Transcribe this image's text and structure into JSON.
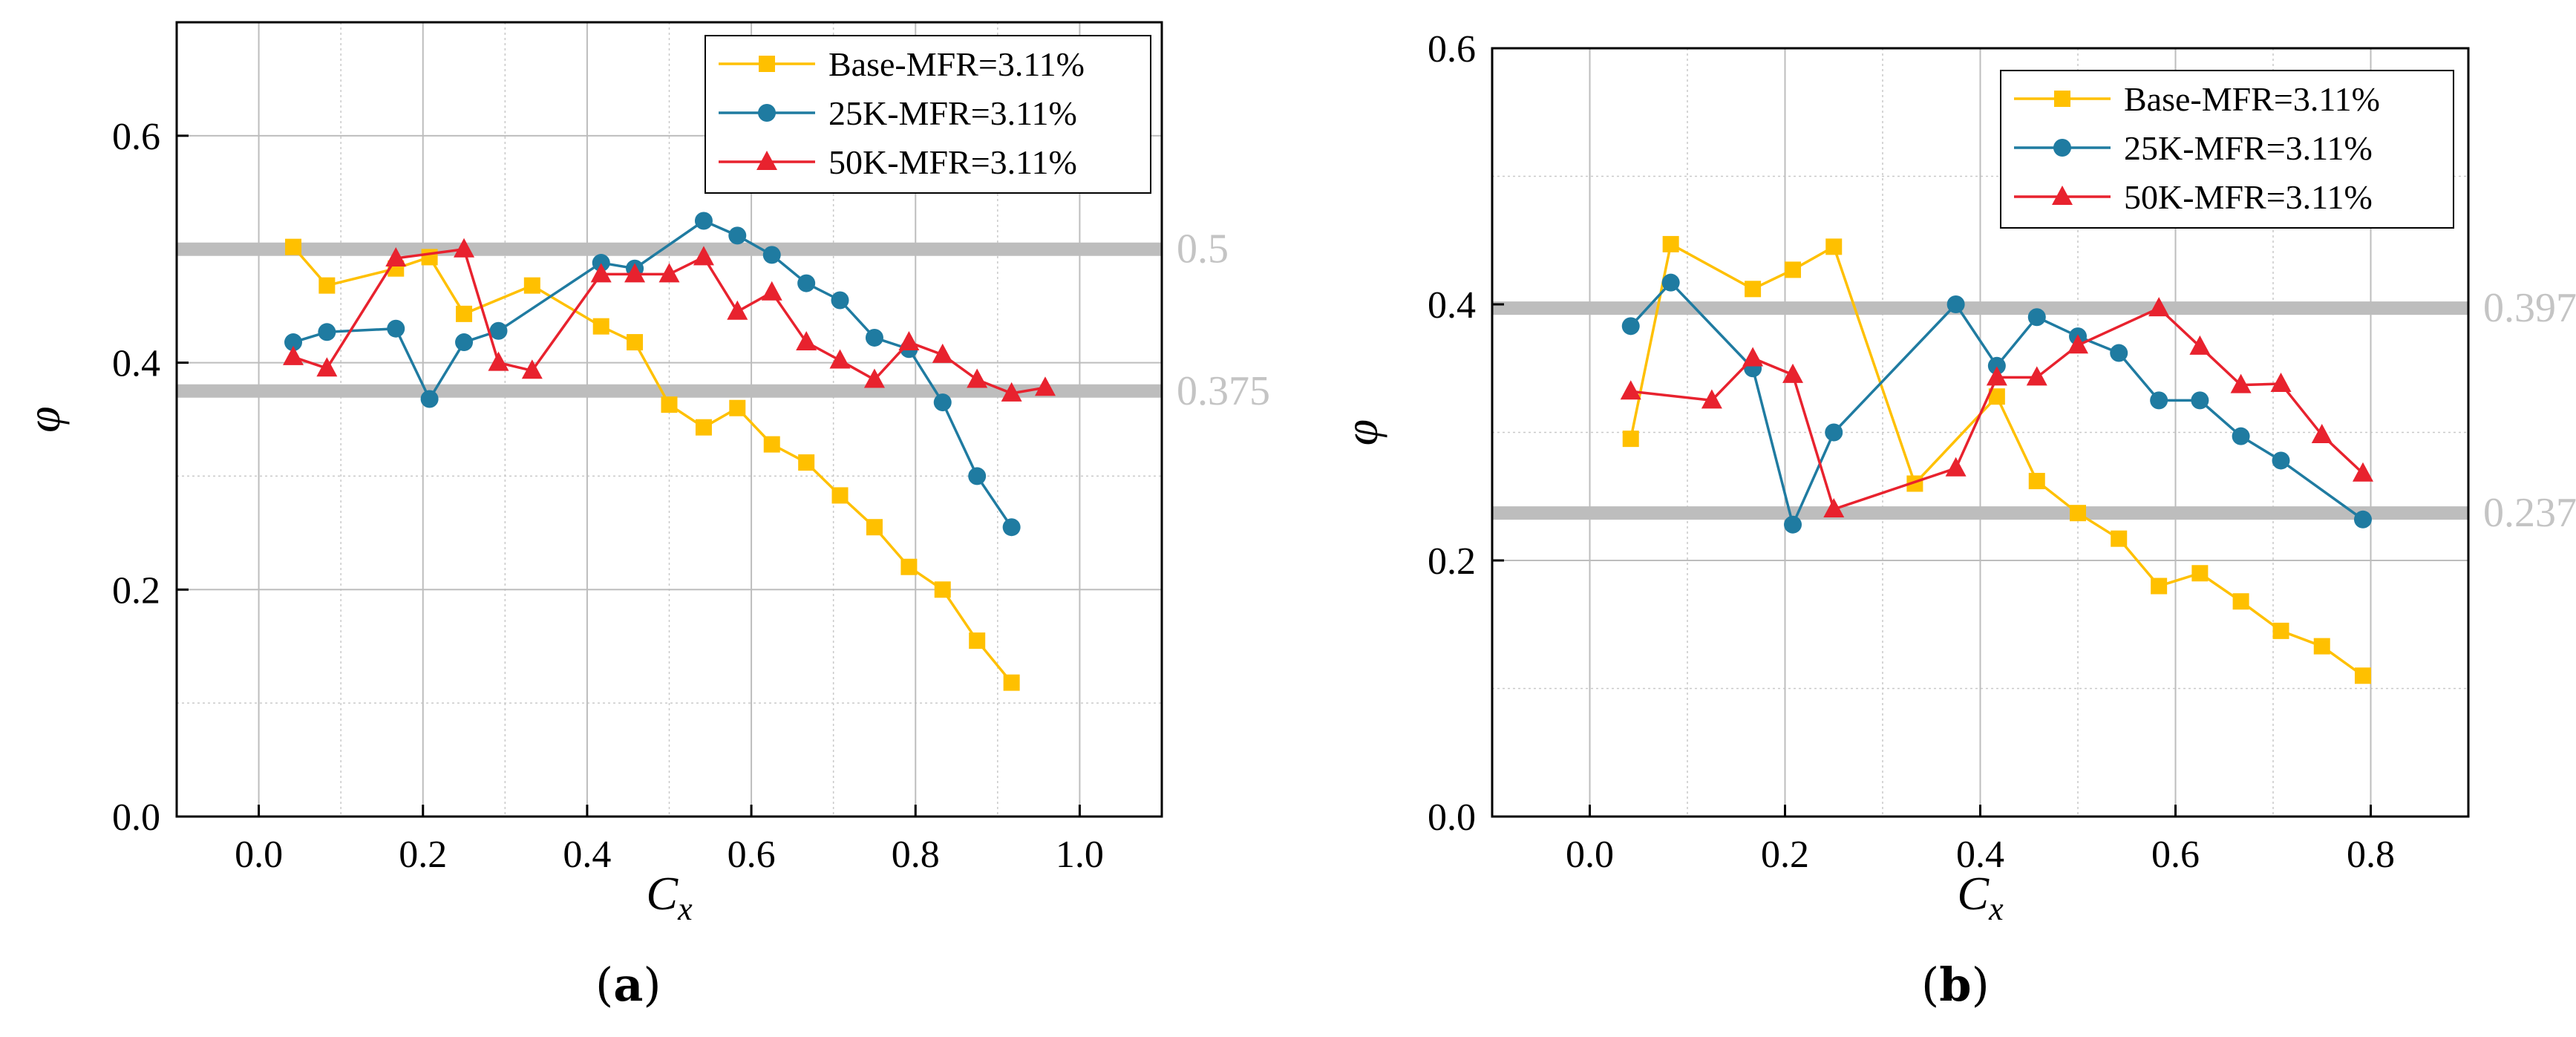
{
  "panels": [
    {
      "label_open": "(",
      "label_letter": "a",
      "label_close": ")",
      "xlabel": "C",
      "xlabel_sub": "x",
      "ylabel": "φ",
      "chart": {
        "type": "line",
        "xlim": [
          -0.1,
          1.1
        ],
        "ylim": [
          0.0,
          0.7
        ],
        "xticks": [
          "0.0",
          "0.2",
          "0.4",
          "0.6",
          "0.8",
          "1.0"
        ],
        "xtick_values": [
          0.0,
          0.2,
          0.4,
          0.6,
          0.8,
          1.0
        ],
        "yticks": [
          "0.0",
          "0.2",
          "0.4",
          "0.6"
        ],
        "ytick_values": [
          0.0,
          0.2,
          0.4,
          0.6
        ],
        "grid": true,
        "legend_position": "top-right",
        "reference_lines": [
          {
            "value": 0.5,
            "label": "0.5"
          },
          {
            "value": 0.375,
            "label": "0.375"
          }
        ],
        "series": [
          {
            "name": "Base-MFR=3.11%",
            "color": "#FFC000",
            "marker": "square",
            "x": [
              0.042,
              0.083,
              0.167,
              0.208,
              0.25,
              0.333,
              0.417,
              0.458,
              0.5,
              0.542,
              0.583,
              0.625,
              0.667,
              0.708,
              0.75,
              0.792,
              0.833,
              0.875,
              0.917
            ],
            "y": [
              0.502,
              0.468,
              0.483,
              0.493,
              0.443,
              0.468,
              0.432,
              0.418,
              0.363,
              0.343,
              0.36,
              0.328,
              0.312,
              0.283,
              0.255,
              0.22,
              0.2,
              0.155,
              0.118
            ]
          },
          {
            "name": "25K-MFR=3.11%",
            "color": "#1F7BA1",
            "marker": "circle",
            "x": [
              0.042,
              0.083,
              0.167,
              0.208,
              0.25,
              0.292,
              0.417,
              0.458,
              0.542,
              0.583,
              0.625,
              0.667,
              0.708,
              0.75,
              0.792,
              0.833,
              0.875,
              0.917
            ],
            "y": [
              0.418,
              0.427,
              0.43,
              0.368,
              0.418,
              0.428,
              0.488,
              0.483,
              0.525,
              0.512,
              0.495,
              0.47,
              0.455,
              0.422,
              0.412,
              0.365,
              0.3,
              0.255
            ]
          },
          {
            "name": "50K-MFR=3.11%",
            "color": "#E8222E",
            "marker": "triangle",
            "x": [
              0.042,
              0.083,
              0.167,
              0.25,
              0.292,
              0.333,
              0.417,
              0.458,
              0.5,
              0.542,
              0.583,
              0.625,
              0.667,
              0.708,
              0.75,
              0.792,
              0.833,
              0.875,
              0.917,
              0.958
            ],
            "y": [
              0.405,
              0.395,
              0.492,
              0.5,
              0.4,
              0.393,
              0.478,
              0.478,
              0.478,
              0.493,
              0.445,
              0.462,
              0.418,
              0.402,
              0.385,
              0.418,
              0.407,
              0.385,
              0.373,
              0.378
            ]
          }
        ]
      }
    },
    {
      "label_open": "(",
      "label_letter": "b",
      "label_close": ")",
      "xlabel": "C",
      "xlabel_sub": "x",
      "ylabel": "φ",
      "chart": {
        "type": "line",
        "xlim": [
          -0.1,
          0.9
        ],
        "ylim": [
          0.0,
          0.6
        ],
        "xticks": [
          "0.0",
          "0.2",
          "0.4",
          "0.6",
          "0.8"
        ],
        "xtick_values": [
          0.0,
          0.2,
          0.4,
          0.6,
          0.8
        ],
        "yticks": [
          "0.0",
          "0.2",
          "0.4",
          "0.6"
        ],
        "ytick_values": [
          0.0,
          0.2,
          0.4,
          0.6
        ],
        "grid": true,
        "legend_position": "top-right",
        "reference_lines": [
          {
            "value": 0.397,
            "label": "0.397"
          },
          {
            "value": 0.237,
            "label": "0.237"
          }
        ],
        "series": [
          {
            "name": "Base-MFR=3.11%",
            "color": "#FFC000",
            "marker": "square",
            "x": [
              0.042,
              0.083,
              0.167,
              0.208,
              0.25,
              0.333,
              0.417,
              0.458,
              0.5,
              0.542,
              0.583,
              0.625,
              0.667,
              0.708,
              0.75,
              0.792
            ],
            "y": [
              0.295,
              0.447,
              0.412,
              0.427,
              0.445,
              0.26,
              0.328,
              0.262,
              0.237,
              0.217,
              0.18,
              0.19,
              0.168,
              0.145,
              0.133,
              0.11
            ]
          },
          {
            "name": "25K-MFR=3.11%",
            "color": "#1F7BA1",
            "marker": "circle",
            "x": [
              0.042,
              0.083,
              0.167,
              0.208,
              0.25,
              0.375,
              0.417,
              0.458,
              0.5,
              0.542,
              0.583,
              0.625,
              0.667,
              0.708,
              0.792
            ],
            "y": [
              0.383,
              0.417,
              0.35,
              0.228,
              0.3,
              0.4,
              0.352,
              0.39,
              0.375,
              0.362,
              0.325,
              0.325,
              0.297,
              0.278,
              0.232
            ]
          },
          {
            "name": "50K-MFR=3.11%",
            "color": "#E8222E",
            "marker": "triangle",
            "x": [
              0.042,
              0.125,
              0.167,
              0.208,
              0.25,
              0.375,
              0.417,
              0.458,
              0.5,
              0.583,
              0.625,
              0.667,
              0.708,
              0.75,
              0.792
            ],
            "y": [
              0.332,
              0.325,
              0.358,
              0.345,
              0.24,
              0.272,
              0.343,
              0.343,
              0.368,
              0.397,
              0.367,
              0.337,
              0.338,
              0.298,
              0.268
            ]
          }
        ]
      }
    }
  ]
}
